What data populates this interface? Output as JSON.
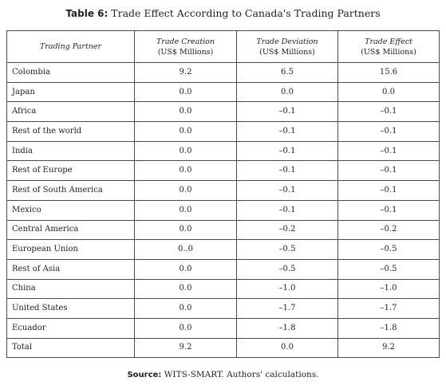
{
  "table": {
    "caption_label": "Table 6:",
    "caption_text": "Trade Effect According to Canada's Trading Partners",
    "headers": [
      {
        "title": "Trading Partner",
        "unit": ""
      },
      {
        "title": "Trade Creation",
        "unit": "(US$ Millions)"
      },
      {
        "title": "Trade Deviation",
        "unit": "(US$ Millions)"
      },
      {
        "title": "Trade Effect",
        "unit": "(US$ Millions)"
      }
    ],
    "rows": [
      {
        "partner": "Colombia",
        "creation": "9.2",
        "deviation": "6.5",
        "effect": "15.6"
      },
      {
        "partner": "Japan",
        "creation": "0.0",
        "deviation": "0.0",
        "effect": "0.0"
      },
      {
        "partner": "Africa",
        "creation": "0.0",
        "deviation": "–0.1",
        "effect": "–0.1"
      },
      {
        "partner": "Rest of the world",
        "creation": "0.0",
        "deviation": "–0.1",
        "effect": "–0.1"
      },
      {
        "partner": "India",
        "creation": "0.0",
        "deviation": "–0.1",
        "effect": "–0.1"
      },
      {
        "partner": "Rest of Europe",
        "creation": "0.0",
        "deviation": "–0.1",
        "effect": "–0.1"
      },
      {
        "partner": "Rest of South America",
        "creation": "0.0",
        "deviation": "–0.1",
        "effect": "–0.1"
      },
      {
        "partner": "Mexico",
        "creation": "0.0",
        "deviation": "–0.1",
        "effect": "–0.1"
      },
      {
        "partner": "Central America",
        "creation": "0.0",
        "deviation": "–0.2",
        "effect": "–0.2"
      },
      {
        "partner": "European Union",
        "creation": "0..0",
        "deviation": "–0.5",
        "effect": "–0.5"
      },
      {
        "partner": "Rest of Asia",
        "creation": "0.0",
        "deviation": "–0.5",
        "effect": "–0.5"
      },
      {
        "partner": "China",
        "creation": "0.0",
        "deviation": "–1.0",
        "effect": "–1.0"
      },
      {
        "partner": "United States",
        "creation": "0.0",
        "deviation": "–1.7",
        "effect": "–1.7"
      },
      {
        "partner": "Ecuador",
        "creation": "0.0",
        "deviation": "–1.8",
        "effect": "–1.8"
      },
      {
        "partner": "Total",
        "creation": "9.2",
        "deviation": "0.0",
        "effect": "9.2"
      }
    ]
  },
  "source": {
    "label": "Source:",
    "text": "WITS-SMART. Authors' calculations."
  }
}
